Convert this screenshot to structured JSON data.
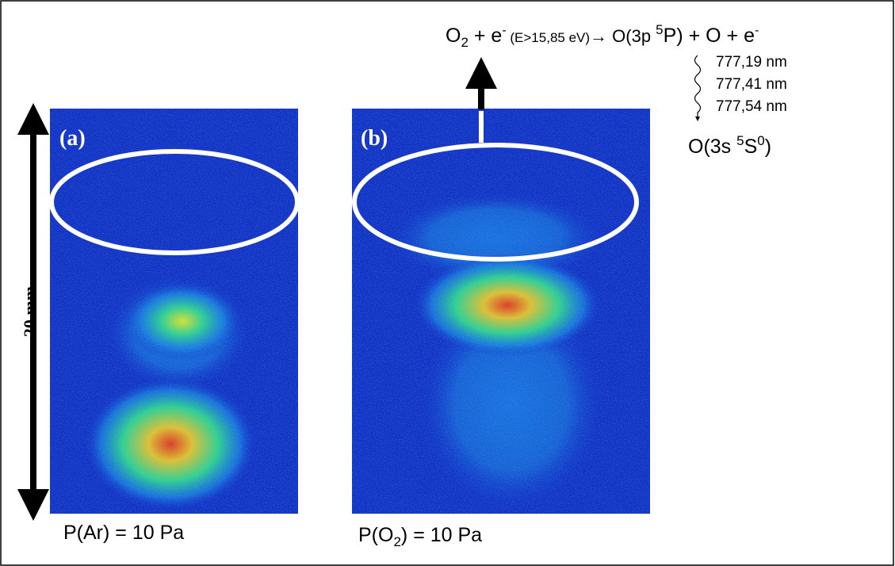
{
  "panels": [
    {
      "label": "(a)",
      "caption": [
        "P(Ar) = 10 Pa"
      ]
    },
    {
      "label": "(b)",
      "caption": [
        "P(O",
        "2",
        ") = 10 Pa"
      ]
    }
  ],
  "scale_label": "20 mm",
  "reaction": [
    "O",
    "2",
    " + e",
    "-",
    " (E>15,85 eV)",
    "→ O(3p ",
    "5",
    "P) + O + e",
    "-"
  ],
  "lines": [
    "777,19 nm",
    "777,41 nm",
    "777,54 nm"
  ],
  "final_state": [
    "O(3s ",
    "5",
    "S",
    "0",
    ")"
  ]
}
